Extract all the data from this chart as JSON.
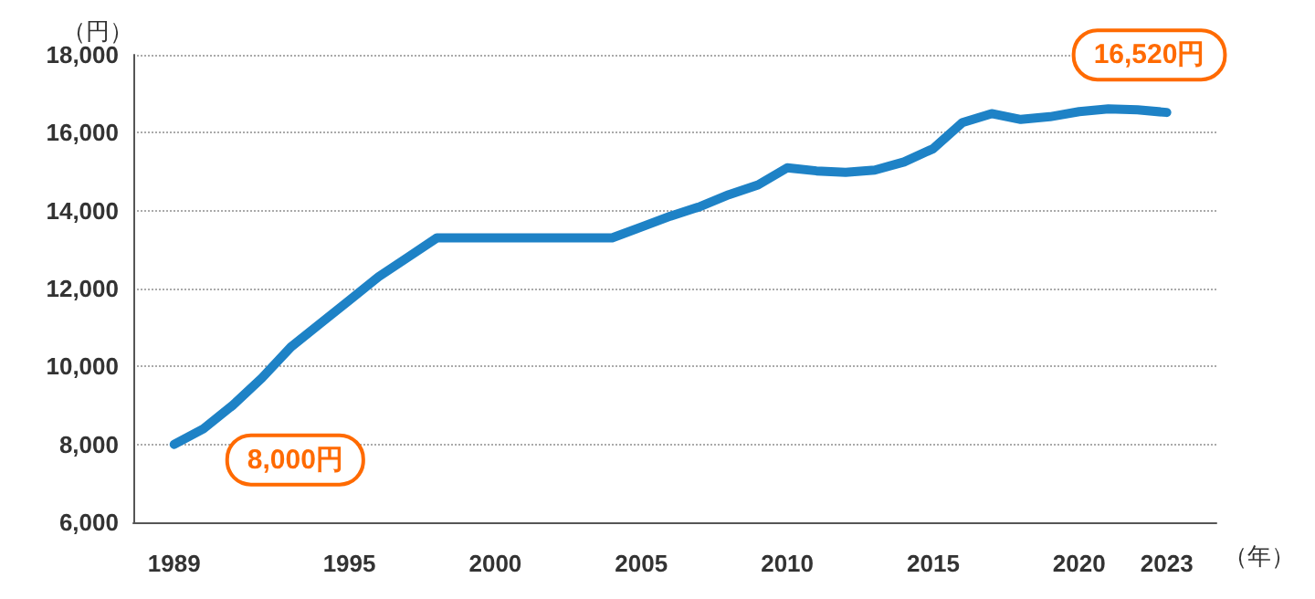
{
  "chart_data": {
    "type": "line",
    "ylabel": "（円）",
    "xlabel": "（年）",
    "x": [
      1989,
      1990,
      1991,
      1992,
      1993,
      1994,
      1995,
      1996,
      1997,
      1998,
      1999,
      2000,
      2001,
      2002,
      2003,
      2004,
      2005,
      2006,
      2007,
      2008,
      2009,
      2010,
      2011,
      2012,
      2013,
      2014,
      2015,
      2016,
      2017,
      2018,
      2019,
      2020,
      2021,
      2022,
      2023
    ],
    "series": [
      {
        "color": "#1e82c6",
        "values": [
          8000,
          8400,
          9000,
          9700,
          10500,
          11100,
          11700,
          12300,
          12800,
          13300,
          13300,
          13300,
          13300,
          13300,
          13300,
          13300,
          13580,
          13860,
          14100,
          14410,
          14660,
          15100,
          15020,
          14980,
          15040,
          15250,
          15590,
          16260,
          16490,
          16340,
          16410,
          16540,
          16610,
          16590,
          16520
        ]
      }
    ],
    "xlim": [
      1987.6,
      2024.7
    ],
    "xticks": [
      1989,
      1995,
      2000,
      2005,
      2010,
      2015,
      2020,
      2023
    ],
    "ylim": [
      6000,
      18000
    ],
    "yticks": [
      {
        "value": 6000,
        "label": "6,000"
      },
      {
        "value": 8000,
        "label": "8,000"
      },
      {
        "value": 10000,
        "label": "10,000"
      },
      {
        "value": 12000,
        "label": "12,000"
      },
      {
        "value": 14000,
        "label": "14,000"
      },
      {
        "value": 16000,
        "label": "16,000"
      },
      {
        "value": 18000,
        "label": "18,000"
      }
    ],
    "grid": "y",
    "marker": "none",
    "line_style": "solid",
    "annotations": [
      {
        "text": "8,000円",
        "x": 1989,
        "y": 8000
      },
      {
        "text": "16,520円",
        "x": 2023,
        "y": 16520
      }
    ]
  }
}
